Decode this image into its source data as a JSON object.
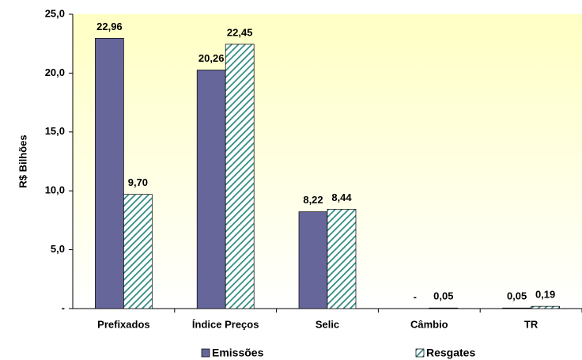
{
  "chart_data": {
    "type": "bar",
    "y_label": "R$ Bilhões",
    "categories": [
      "Prefixados",
      "Índice Preços",
      "Selic",
      "Câmbio",
      "TR"
    ],
    "series": [
      {
        "name": "Emissões",
        "color": "#66669a",
        "values": [
          22.96,
          20.26,
          8.22,
          0,
          0.05
        ],
        "value_labels": [
          "22,96",
          "20,26",
          "8,22",
          "-",
          "0,05"
        ]
      },
      {
        "name": "Resgates",
        "color": "#2e8b80",
        "hatch": true,
        "values": [
          9.7,
          22.45,
          8.44,
          0.05,
          0.19
        ],
        "value_labels": [
          "9,70",
          "22,45",
          "8,44",
          "0,05",
          "0,19"
        ]
      }
    ],
    "ylim": [
      0,
      25
    ],
    "yticks": [
      {
        "value": 0,
        "label": "-"
      },
      {
        "value": 5,
        "label": "5,0"
      },
      {
        "value": 10,
        "label": "10,0"
      },
      {
        "value": 15,
        "label": "15,0"
      },
      {
        "value": 20,
        "label": "20,0"
      },
      {
        "value": 25,
        "label": "25,0"
      }
    ],
    "grid": false
  }
}
